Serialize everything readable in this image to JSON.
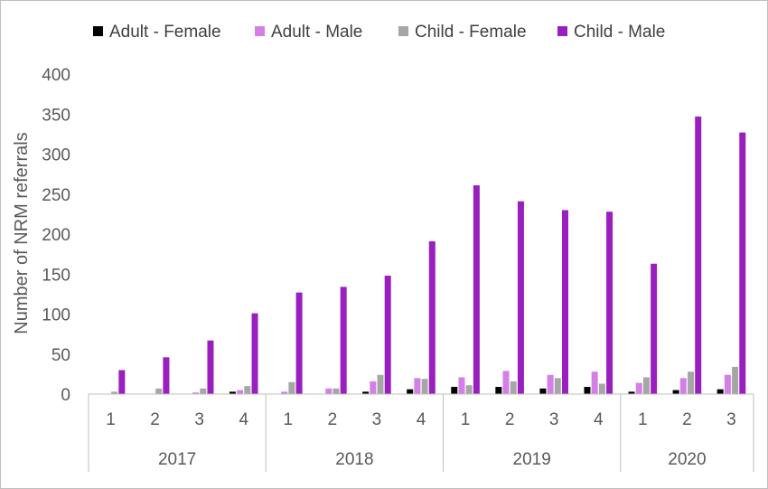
{
  "chart_data": {
    "type": "bar",
    "title": "",
    "xlabel": "",
    "ylabel": "Number of NRM referrals",
    "ylim": [
      0,
      400
    ],
    "yticks": [
      0,
      50,
      100,
      150,
      200,
      250,
      300,
      350,
      400
    ],
    "grid": false,
    "legend_position": "top",
    "categories": [
      "1",
      "2",
      "3",
      "4",
      "1",
      "2",
      "3",
      "4",
      "1",
      "2",
      "3",
      "4",
      "1",
      "2",
      "3"
    ],
    "groups": [
      {
        "label": "2017",
        "count": 4
      },
      {
        "label": "2018",
        "count": 4
      },
      {
        "label": "2019",
        "count": 4
      },
      {
        "label": "2020",
        "count": 3
      }
    ],
    "series": [
      {
        "name": "Adult - Female",
        "color": "#000000",
        "values": [
          0,
          0,
          0,
          3,
          0,
          0,
          3,
          6,
          9,
          9,
          7,
          9,
          3,
          5,
          6
        ]
      },
      {
        "name": "Adult - Male",
        "color": "#d47fe6",
        "values": [
          0,
          0,
          2,
          5,
          3,
          7,
          16,
          20,
          21,
          29,
          24,
          28,
          14,
          20,
          24
        ]
      },
      {
        "name": "Child - Female",
        "color": "#a6a6a6",
        "values": [
          3,
          7,
          7,
          10,
          15,
          7,
          24,
          19,
          11,
          16,
          20,
          13,
          21,
          28,
          34
        ]
      },
      {
        "name": "Child - Male",
        "color": "#9a1fbf",
        "values": [
          30,
          46,
          67,
          101,
          127,
          134,
          148,
          191,
          261,
          241,
          230,
          228,
          163,
          347,
          327
        ]
      }
    ]
  }
}
